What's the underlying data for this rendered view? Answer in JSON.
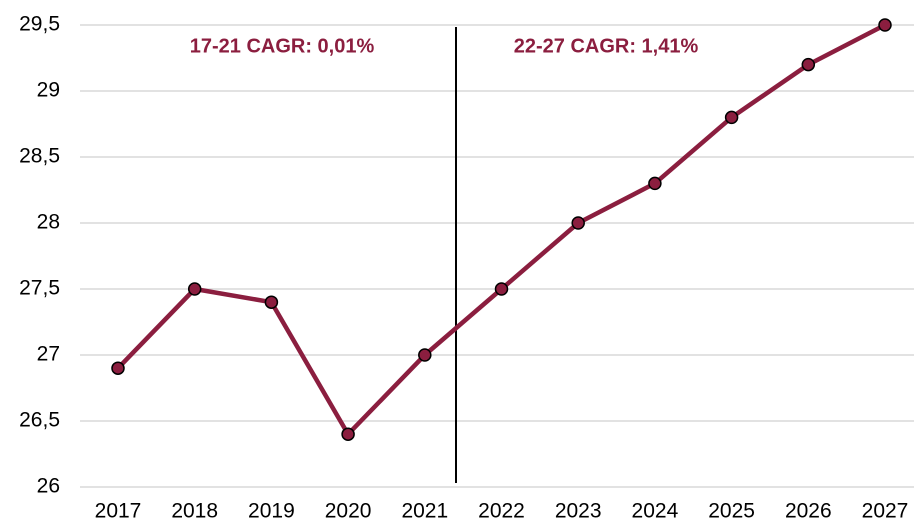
{
  "chart_data": {
    "type": "line",
    "categories": [
      "2017",
      "2018",
      "2019",
      "2020",
      "2021",
      "2022",
      "2023",
      "2024",
      "2025",
      "2026",
      "2027"
    ],
    "values": [
      26.9,
      27.5,
      27.4,
      26.4,
      27.0,
      27.5,
      28.0,
      28.3,
      28.8,
      29.2,
      29.5
    ],
    "color": "#8b1e3f",
    "ylim": [
      26,
      29.5
    ],
    "yticks": [
      26,
      {
        "value": 26.5,
        "label": "26,5"
      },
      27,
      {
        "value": 27.5,
        "label": "27,5"
      },
      28,
      {
        "value": 28.5,
        "label": "28,5"
      },
      29,
      {
        "value": 29.5,
        "label": "29,5"
      }
    ],
    "grid": true,
    "annotations": [
      "17-21 CAGR: 0,01%",
      "22-27 CAGR: 1,41%"
    ]
  }
}
